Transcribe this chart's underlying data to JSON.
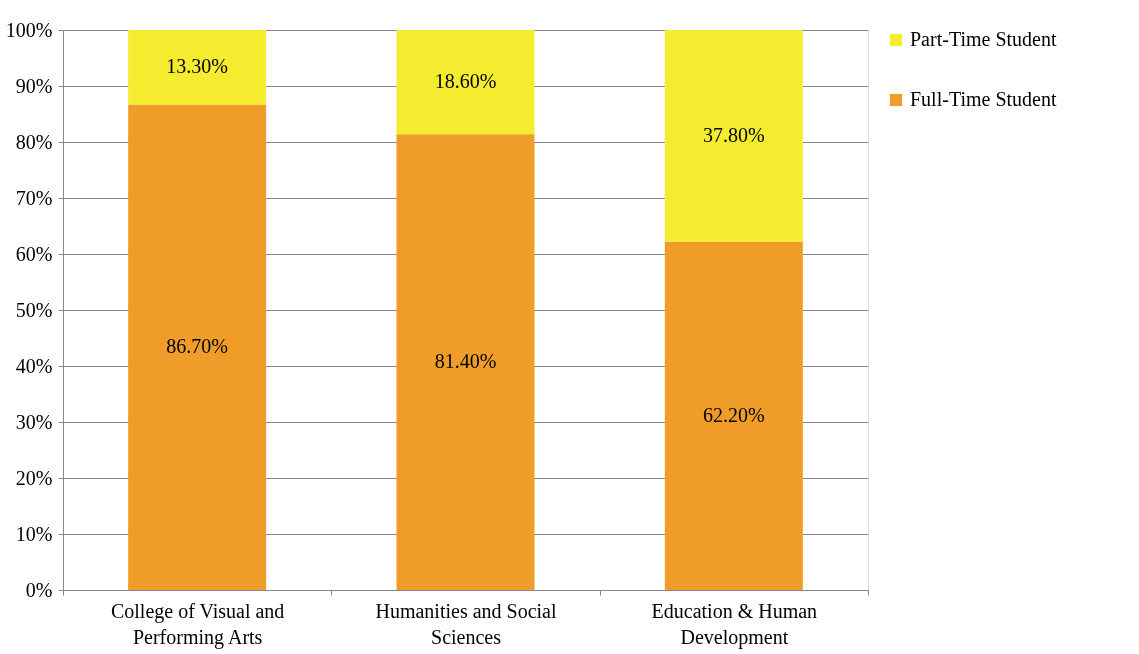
{
  "chart_data": {
    "type": "bar",
    "stacked": true,
    "categories": [
      "College of Visual and Performing Arts",
      "Humanities and Social Sciences",
      "Education & Human Development"
    ],
    "series": [
      {
        "name": "Full-Time Student",
        "color": "#f09c28",
        "values": [
          86.7,
          81.4,
          62.2
        ],
        "value_labels": [
          "86.70%",
          "81.40%",
          "62.20%"
        ]
      },
      {
        "name": "Part-Time Student",
        "color": "#f5eb2f",
        "values": [
          13.3,
          18.6,
          37.8
        ],
        "value_labels": [
          "13.30%",
          "18.60%",
          "37.80%"
        ]
      }
    ],
    "ylim": [
      0,
      100
    ],
    "yticks": [
      {
        "value": 0,
        "label": "0%"
      },
      {
        "value": 10,
        "label": "10%"
      },
      {
        "value": 20,
        "label": "20%"
      },
      {
        "value": 30,
        "label": "30%"
      },
      {
        "value": 40,
        "label": "40%"
      },
      {
        "value": 50,
        "label": "50%"
      },
      {
        "value": 60,
        "label": "60%"
      },
      {
        "value": 70,
        "label": "70%"
      },
      {
        "value": 80,
        "label": "80%"
      },
      {
        "value": 90,
        "label": "90%"
      },
      {
        "value": 100,
        "label": "100%"
      }
    ],
    "grid": "y",
    "legend": "right"
  }
}
